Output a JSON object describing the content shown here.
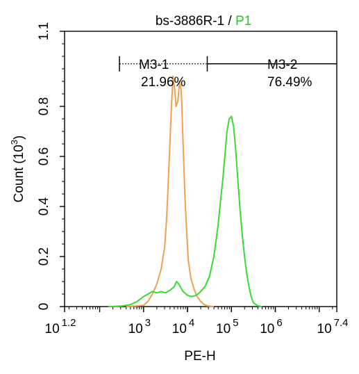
{
  "chart_data": {
    "type": "line",
    "title": {
      "sample": "bs-3886R-1",
      "separator": " / ",
      "gate": "P1",
      "gate_color": "#22cc22"
    },
    "xlabel": "PE-H",
    "ylabel_main": "Count",
    "ylabel_unit": "(10",
    "ylabel_unit_exp": "3",
    "ylabel_unit_close": ")",
    "x_scale": "log10",
    "xlim_log": [
      1.2,
      7.4
    ],
    "ylim": [
      0,
      1.1
    ],
    "grid": false,
    "y_ticks": [
      {
        "value": 0,
        "label": "0"
      },
      {
        "value": 0.2,
        "label": "0.2"
      },
      {
        "value": 0.4,
        "label": "0.4"
      },
      {
        "value": 0.6,
        "label": "0.6"
      },
      {
        "value": 0.8,
        "label": "0.8"
      },
      {
        "value": 1.1,
        "label": "1.1"
      }
    ],
    "x_ticks": [
      {
        "exp": 1.2,
        "base": "10",
        "sup": "1.2"
      },
      {
        "exp": 3,
        "base": "10",
        "sup": "3"
      },
      {
        "exp": 4,
        "base": "10",
        "sup": "4"
      },
      {
        "exp": 5,
        "base": "10",
        "sup": "5"
      },
      {
        "exp": 6,
        "base": "10",
        "sup": "6"
      },
      {
        "exp": 7.4,
        "base": "10",
        "sup": "7.4"
      }
    ],
    "markers": [
      {
        "name": "M3-1",
        "percent": "21.96%",
        "x_log_range": [
          2.45,
          4.45
        ],
        "y": 0.97
      },
      {
        "name": "M3-2",
        "percent": "76.49%",
        "x_log_range": [
          4.45,
          7.4
        ],
        "y": 0.97
      }
    ],
    "series": [
      {
        "color": "#f0a050",
        "points": [
          [
            2.6,
            0
          ],
          [
            2.8,
            0.002
          ],
          [
            3.0,
            0.005
          ],
          [
            3.1,
            0.02
          ],
          [
            3.2,
            0.05
          ],
          [
            3.3,
            0.09
          ],
          [
            3.4,
            0.15
          ],
          [
            3.48,
            0.24
          ],
          [
            3.52,
            0.34
          ],
          [
            3.55,
            0.45
          ],
          [
            3.58,
            0.57
          ],
          [
            3.61,
            0.7
          ],
          [
            3.64,
            0.82
          ],
          [
            3.67,
            0.92
          ],
          [
            3.7,
            0.88
          ],
          [
            3.74,
            0.8
          ],
          [
            3.78,
            0.82
          ],
          [
            3.82,
            0.9
          ],
          [
            3.86,
            0.86
          ],
          [
            3.9,
            0.65
          ],
          [
            3.94,
            0.45
          ],
          [
            3.98,
            0.3
          ],
          [
            4.02,
            0.18
          ],
          [
            4.08,
            0.11
          ],
          [
            4.15,
            0.07
          ],
          [
            4.22,
            0.04
          ],
          [
            4.3,
            0.02
          ],
          [
            4.38,
            0.008
          ],
          [
            4.45,
            0.003
          ],
          [
            4.6,
            0
          ]
        ]
      },
      {
        "color": "#33dd33",
        "points": [
          [
            2.2,
            0
          ],
          [
            2.5,
            0.002
          ],
          [
            2.7,
            0.008
          ],
          [
            2.85,
            0.02
          ],
          [
            3.0,
            0.04
          ],
          [
            3.1,
            0.05
          ],
          [
            3.2,
            0.06
          ],
          [
            3.3,
            0.055
          ],
          [
            3.4,
            0.06
          ],
          [
            3.5,
            0.055
          ],
          [
            3.6,
            0.065
          ],
          [
            3.7,
            0.08
          ],
          [
            3.75,
            0.1
          ],
          [
            3.8,
            0.09
          ],
          [
            3.85,
            0.075
          ],
          [
            3.9,
            0.06
          ],
          [
            4.0,
            0.045
          ],
          [
            4.1,
            0.04
          ],
          [
            4.2,
            0.045
          ],
          [
            4.3,
            0.06
          ],
          [
            4.4,
            0.08
          ],
          [
            4.5,
            0.12
          ],
          [
            4.6,
            0.2
          ],
          [
            4.7,
            0.33
          ],
          [
            4.75,
            0.42
          ],
          [
            4.8,
            0.5
          ],
          [
            4.85,
            0.6
          ],
          [
            4.9,
            0.7
          ],
          [
            4.95,
            0.75
          ],
          [
            5.0,
            0.76
          ],
          [
            5.05,
            0.72
          ],
          [
            5.1,
            0.62
          ],
          [
            5.15,
            0.5
          ],
          [
            5.2,
            0.38
          ],
          [
            5.25,
            0.28
          ],
          [
            5.3,
            0.2
          ],
          [
            5.35,
            0.13
          ],
          [
            5.4,
            0.08
          ],
          [
            5.45,
            0.04
          ],
          [
            5.5,
            0.015
          ],
          [
            5.6,
            0.003
          ],
          [
            5.7,
            0
          ]
        ]
      }
    ]
  }
}
